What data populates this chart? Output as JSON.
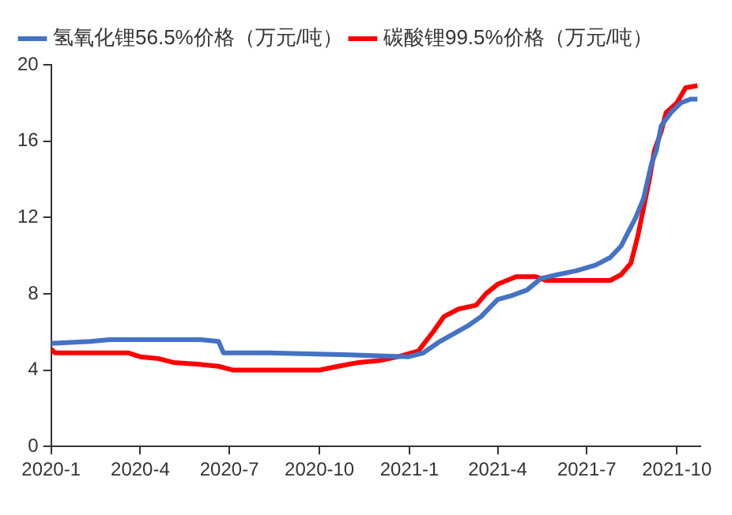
{
  "chart_data": {
    "type": "line",
    "legend": "top left",
    "grid": false,
    "marker": "none",
    "line_style": "solid",
    "xlim": [
      "2020-01-01",
      "2021-10-25"
    ],
    "xticks": [
      {
        "value": "2020-01",
        "label": "2020-1"
      },
      {
        "value": "2020-04",
        "label": "2020-4"
      },
      {
        "value": "2020-07",
        "label": "2020-7"
      },
      {
        "value": "2020-10",
        "label": "2020-10"
      },
      {
        "value": "2021-01",
        "label": "2021-1"
      },
      {
        "value": "2021-04",
        "label": "2021-4"
      },
      {
        "value": "2021-07",
        "label": "2021-7"
      },
      {
        "value": "2021-10",
        "label": "2021-10"
      }
    ],
    "ylim": [
      0,
      20
    ],
    "yticks": [
      0,
      4,
      8,
      12,
      16,
      20
    ],
    "series": [
      {
        "name": "氢氧化锂56.5%价格（万元/吨）",
        "color": "#4472c4",
        "x": [
          "2020-01-01",
          "2020-02-10",
          "2020-03-01",
          "2020-06-01",
          "2020-06-20",
          "2020-06-25",
          "2020-08-10",
          "2020-11-01",
          "2020-12-31",
          "2021-01-15",
          "2021-02-01",
          "2021-02-15",
          "2021-03-01",
          "2021-03-15",
          "2021-04-01",
          "2021-04-15",
          "2021-05-01",
          "2021-05-15",
          "2021-06-01",
          "2021-06-20",
          "2021-07-10",
          "2021-07-25",
          "2021-08-05",
          "2021-08-10",
          "2021-08-20",
          "2021-08-28",
          "2021-09-05",
          "2021-09-10",
          "2021-09-15",
          "2021-09-25",
          "2021-10-05",
          "2021-10-15",
          "2021-10-22"
        ],
        "values": [
          5.4,
          5.5,
          5.6,
          5.6,
          5.5,
          4.9,
          4.9,
          4.8,
          4.7,
          4.9,
          5.5,
          5.9,
          6.3,
          6.8,
          7.7,
          7.9,
          8.2,
          8.8,
          9.0,
          9.2,
          9.5,
          9.9,
          10.5,
          11,
          12,
          13,
          14.8,
          15.5,
          16.8,
          17.5,
          18.0,
          18.2,
          18.2
        ]
      },
      {
        "name": "碳酸锂99.5%价格（万元/吨）",
        "color": "#ff0000",
        "x": [
          "2020-01-01",
          "2020-01-05",
          "2020-03-20",
          "2020-04-01",
          "2020-04-20",
          "2020-05-05",
          "2020-06-01",
          "2020-06-20",
          "2020-07-05",
          "2020-10-01",
          "2020-10-20",
          "2020-11-10",
          "2020-12-01",
          "2020-12-20",
          "2021-01-10",
          "2021-01-25",
          "2021-02-05",
          "2021-02-20",
          "2021-03-10",
          "2021-03-20",
          "2021-04-01",
          "2021-04-20",
          "2021-05-10",
          "2021-05-20",
          "2021-06-10",
          "2021-07-25",
          "2021-08-05",
          "2021-08-15",
          "2021-08-22",
          "2021-08-28",
          "2021-09-03",
          "2021-09-08",
          "2021-09-15",
          "2021-09-20",
          "2021-10-01",
          "2021-10-10",
          "2021-10-22"
        ],
        "values": [
          5.1,
          4.9,
          4.9,
          4.7,
          4.6,
          4.4,
          4.3,
          4.2,
          4.0,
          4.0,
          4.2,
          4.4,
          4.5,
          4.7,
          5.0,
          6.0,
          6.8,
          7.2,
          7.4,
          8.0,
          8.5,
          8.9,
          8.9,
          8.7,
          8.7,
          8.7,
          9.0,
          9.6,
          11,
          12.5,
          14,
          15.5,
          16.5,
          17.5,
          18.0,
          18.8,
          18.9
        ]
      }
    ]
  }
}
